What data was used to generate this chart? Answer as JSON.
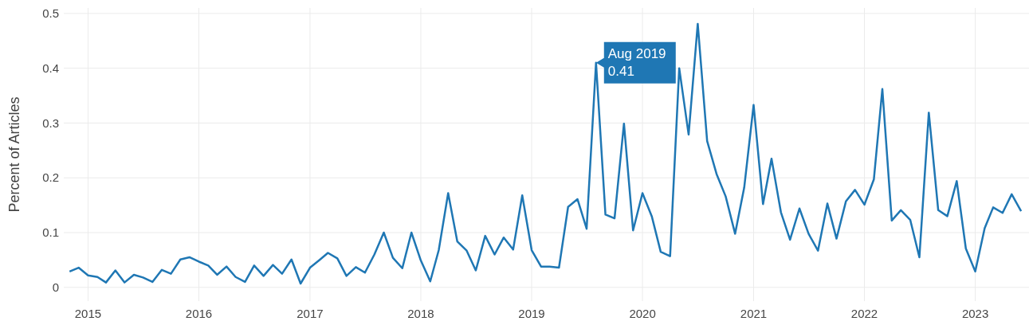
{
  "chart_data": {
    "type": "line",
    "ylabel": "Percent of Articles",
    "x": [
      "2014-11",
      "2014-12",
      "2015-01",
      "2015-02",
      "2015-03",
      "2015-04",
      "2015-05",
      "2015-06",
      "2015-07",
      "2015-08",
      "2015-09",
      "2015-10",
      "2015-11",
      "2015-12",
      "2016-01",
      "2016-02",
      "2016-03",
      "2016-04",
      "2016-05",
      "2016-06",
      "2016-07",
      "2016-08",
      "2016-09",
      "2016-10",
      "2016-11",
      "2016-12",
      "2017-01",
      "2017-02",
      "2017-03",
      "2017-04",
      "2017-05",
      "2017-06",
      "2017-07",
      "2017-08",
      "2017-09",
      "2017-10",
      "2017-11",
      "2017-12",
      "2018-01",
      "2018-02",
      "2018-03",
      "2018-04",
      "2018-05",
      "2018-06",
      "2018-07",
      "2018-08",
      "2018-09",
      "2018-10",
      "2018-11",
      "2018-12",
      "2019-01",
      "2019-02",
      "2019-03",
      "2019-04",
      "2019-05",
      "2019-06",
      "2019-07",
      "2019-08",
      "2019-09",
      "2019-10",
      "2019-11",
      "2019-12",
      "2020-01",
      "2020-02",
      "2020-03",
      "2020-04",
      "2020-05",
      "2020-06",
      "2020-07",
      "2020-08",
      "2020-09",
      "2020-10",
      "2020-11",
      "2020-12",
      "2021-01",
      "2021-02",
      "2021-03",
      "2021-04",
      "2021-05",
      "2021-06",
      "2021-07",
      "2021-08",
      "2021-09",
      "2021-10",
      "2021-11",
      "2021-12",
      "2022-01",
      "2022-02",
      "2022-03",
      "2022-04",
      "2022-05",
      "2022-06",
      "2022-07",
      "2022-08",
      "2022-09",
      "2022-10",
      "2022-11",
      "2022-12",
      "2023-01",
      "2023-02",
      "2023-03",
      "2023-04",
      "2023-05",
      "2023-06"
    ],
    "series": [
      {
        "color": "#1f77b4",
        "values": [
          0.029,
          0.036,
          0.022,
          0.019,
          0.009,
          0.031,
          0.009,
          0.023,
          0.018,
          0.01,
          0.032,
          0.025,
          0.051,
          0.055,
          0.047,
          0.04,
          0.023,
          0.038,
          0.019,
          0.01,
          0.04,
          0.021,
          0.041,
          0.025,
          0.051,
          0.007,
          0.036,
          0.05,
          0.063,
          0.053,
          0.021,
          0.037,
          0.027,
          0.06,
          0.1,
          0.054,
          0.035,
          0.1,
          0.049,
          0.011,
          0.068,
          0.172,
          0.084,
          0.067,
          0.031,
          0.094,
          0.06,
          0.091,
          0.069,
          0.168,
          0.068,
          0.038,
          0.038,
          0.036,
          0.147,
          0.161,
          0.107,
          0.41,
          0.133,
          0.126,
          0.299,
          0.104,
          0.172,
          0.129,
          0.065,
          0.057,
          0.4,
          0.279,
          0.481,
          0.267,
          0.207,
          0.166,
          0.098,
          0.182,
          0.333,
          0.152,
          0.235,
          0.137,
          0.087,
          0.144,
          0.098,
          0.067,
          0.153,
          0.089,
          0.157,
          0.178,
          0.151,
          0.197,
          0.362,
          0.122,
          0.141,
          0.123,
          0.055,
          0.319,
          0.141,
          0.13,
          0.194,
          0.071,
          0.029,
          0.108,
          0.146,
          0.136,
          0.17,
          0.139
        ]
      }
    ],
    "xlim": [
      "2014-10-13",
      "2023-06-27"
    ],
    "xticks": [
      {
        "value": "2015",
        "label": "2015"
      },
      {
        "value": "2016",
        "label": "2016"
      },
      {
        "value": "2017",
        "label": "2017"
      },
      {
        "value": "2018",
        "label": "2018"
      },
      {
        "value": "2019",
        "label": "2019"
      },
      {
        "value": "2020",
        "label": "2020"
      },
      {
        "value": "2021",
        "label": "2021"
      },
      {
        "value": "2022",
        "label": "2022"
      },
      {
        "value": "2023",
        "label": "2023"
      }
    ],
    "ylim": [
      -0.025,
      0.51
    ],
    "yticks": [
      0,
      0.1,
      0.2,
      0.3,
      0.4,
      0.5
    ],
    "grid": true,
    "line_style": "solid",
    "marker": "none",
    "annotations": [
      {
        "text": "Aug 2019\n0.41",
        "x": "2019-08",
        "y": 0.41
      }
    ]
  }
}
